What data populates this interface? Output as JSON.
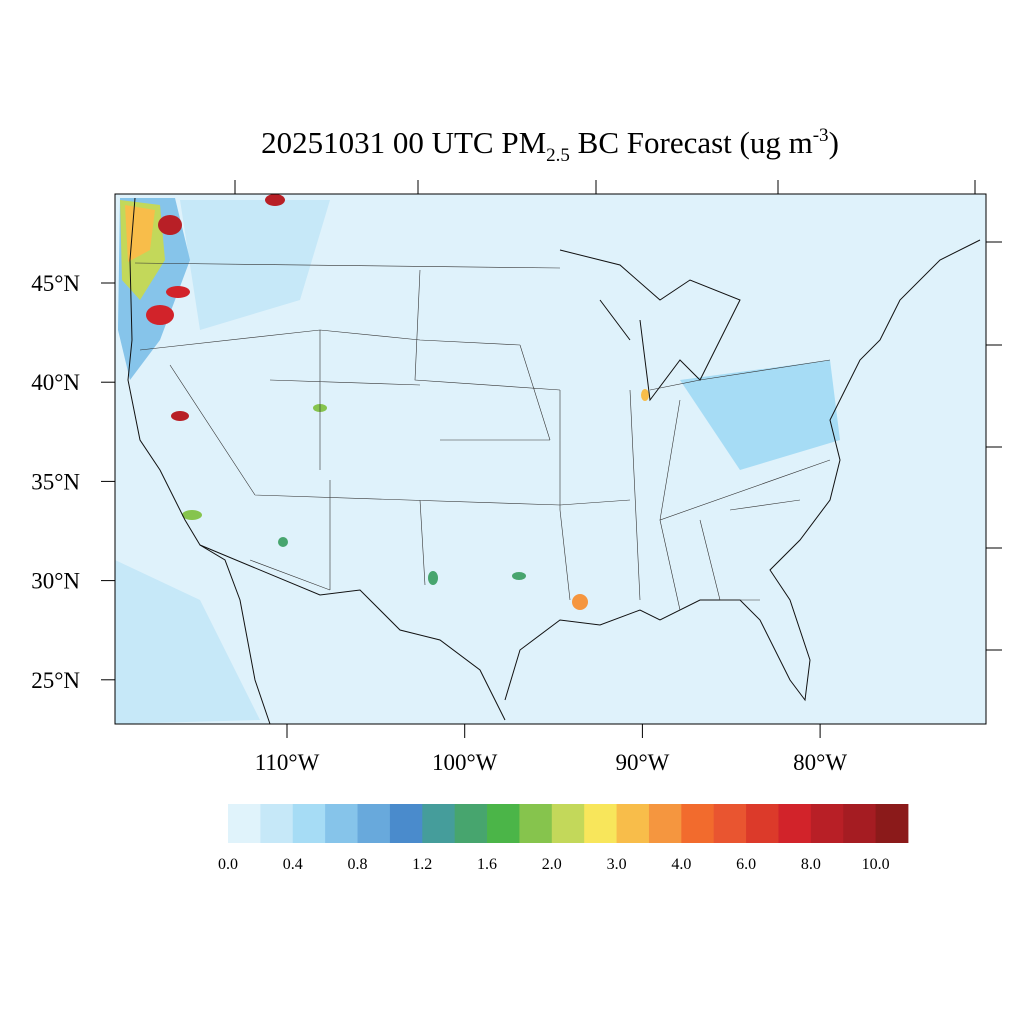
{
  "title": {
    "text": "20251031 00 UTC PM",
    "subscript": "2.5",
    "text_after": " BC Forecast (ug m",
    "superscript": "-3",
    "close": ")"
  },
  "latitude_labels": [
    "45°N",
    "40°N",
    "35°N",
    "30°N",
    "25°N"
  ],
  "longitude_labels": [
    "110°W",
    "100°W",
    "90°W",
    "80°W"
  ],
  "colorbar": {
    "colors": [
      "#e0f3fb",
      "#c6e8f8",
      "#a6dcf5",
      "#86c4ea",
      "#68a9dc",
      "#4a8bcc",
      "#459d9b",
      "#47a56e",
      "#4bb548",
      "#86c44d",
      "#c3d85a",
      "#f8e65b",
      "#f8bd4a",
      "#f5963f",
      "#f26b2d",
      "#e95530",
      "#dc3a2a",
      "#d2232a",
      "#b81f26",
      "#a51c22",
      "#8b1a1a"
    ],
    "labels": [
      "0.0",
      "0.4",
      "0.8",
      "1.2",
      "1.6",
      "2.0",
      "3.0",
      "4.0",
      "6.0",
      "8.0",
      "10.0"
    ]
  }
}
